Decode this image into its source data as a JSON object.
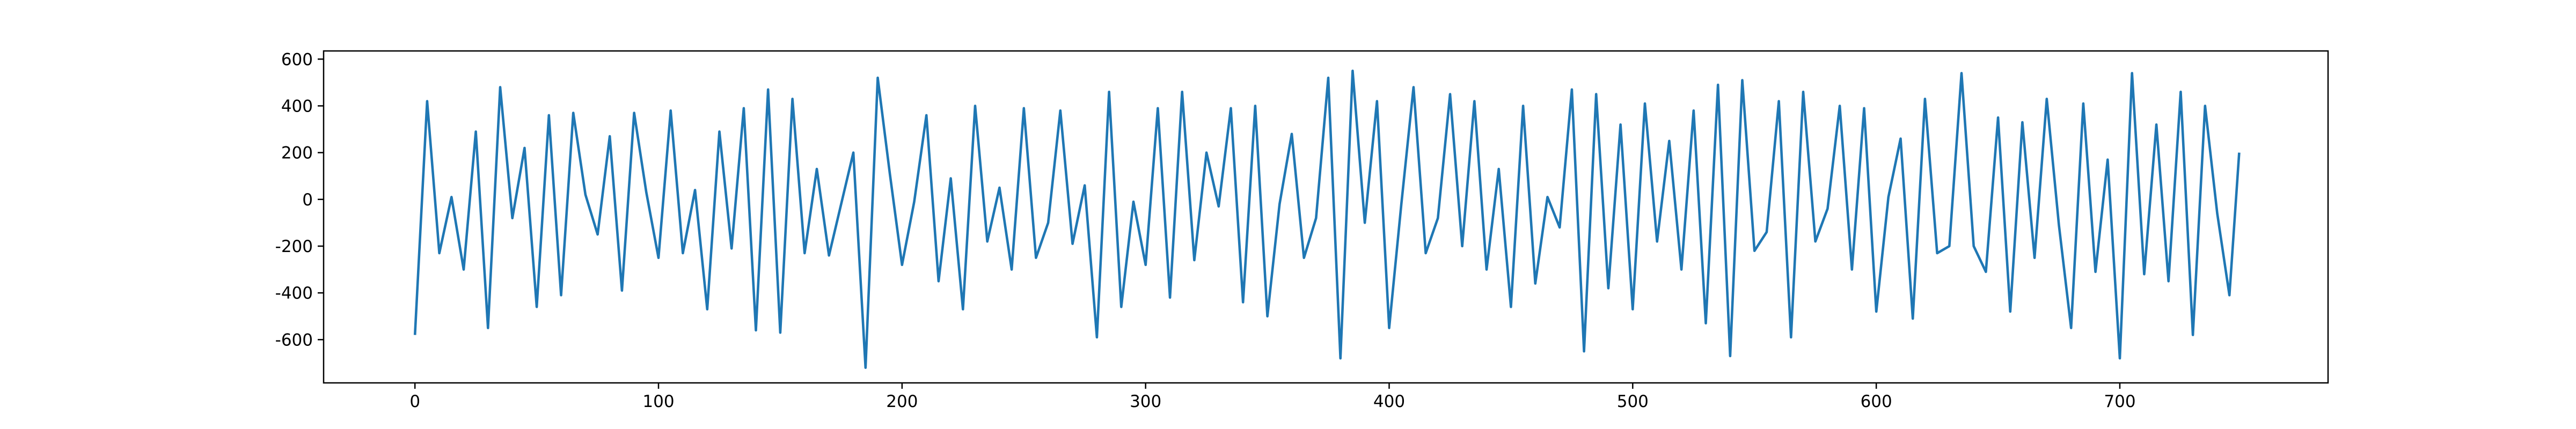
{
  "chart_data": {
    "type": "line",
    "x": [
      0,
      5,
      10,
      15,
      20,
      25,
      30,
      35,
      40,
      45,
      50,
      55,
      60,
      65,
      70,
      75,
      80,
      85,
      90,
      95,
      100,
      105,
      110,
      115,
      120,
      125,
      130,
      135,
      140,
      145,
      150,
      155,
      160,
      165,
      170,
      175,
      180,
      185,
      190,
      195,
      200,
      205,
      210,
      215,
      220,
      225,
      230,
      235,
      240,
      245,
      250,
      255,
      260,
      265,
      270,
      275,
      280,
      285,
      290,
      295,
      300,
      305,
      310,
      315,
      320,
      325,
      330,
      335,
      340,
      345,
      350,
      355,
      360,
      365,
      370,
      375,
      380,
      385,
      390,
      395,
      400,
      405,
      410,
      415,
      420,
      425,
      430,
      435,
      440,
      445,
      450,
      455,
      460,
      465,
      470,
      475,
      480,
      485,
      490,
      495,
      500,
      505,
      510,
      515,
      520,
      525,
      530,
      535,
      540,
      545,
      550,
      555,
      560,
      565,
      570,
      575,
      580,
      585,
      590,
      595,
      600,
      605,
      610,
      615,
      620,
      625,
      630,
      635,
      640,
      645,
      650,
      655,
      660,
      665,
      670,
      675,
      680,
      685,
      690,
      695,
      700,
      705,
      710,
      715,
      720,
      725,
      730,
      735,
      740,
      745,
      749
    ],
    "series": [
      {
        "color": "#1f77b4",
        "values": [
          -580,
          420,
          -230,
          10,
          -300,
          290,
          -550,
          480,
          -80,
          220,
          -460,
          360,
          -410,
          370,
          20,
          -150,
          270,
          -390,
          370,
          30,
          -250,
          380,
          -230,
          40,
          -470,
          290,
          -210,
          390,
          -560,
          470,
          -570,
          430,
          -230,
          130,
          -240,
          -20,
          200,
          -720,
          520,
          110,
          -280,
          -10,
          360,
          -350,
          90,
          -470,
          400,
          -180,
          50,
          -300,
          390,
          -250,
          -100,
          380,
          -190,
          60,
          -590,
          460,
          -460,
          -10,
          -280,
          390,
          -420,
          460,
          -260,
          200,
          -30,
          390,
          -440,
          400,
          -500,
          -20,
          280,
          -250,
          -80,
          520,
          -680,
          550,
          -100,
          420,
          -550,
          -20,
          480,
          -230,
          -80,
          450,
          -200,
          420,
          -300,
          130,
          -460,
          400,
          -360,
          10,
          -120,
          470,
          -650,
          450,
          -380,
          320,
          -470,
          410,
          -180,
          250,
          -300,
          380,
          -530,
          490,
          -670,
          510,
          -220,
          -140,
          420,
          -590,
          460,
          -180,
          -40,
          400,
          -300,
          390,
          -480,
          10,
          260,
          -510,
          430,
          -230,
          -200,
          540,
          -200,
          -310,
          350,
          -480,
          330,
          -250,
          430,
          -110,
          -550,
          410,
          -310,
          170,
          -680,
          540,
          -320,
          320,
          -350,
          460,
          -580,
          400,
          -60,
          -410,
          200
        ]
      }
    ],
    "xlim": [
      -37.5,
      785.5
    ],
    "ylim": [
      -785,
      635
    ],
    "xticks": [
      0,
      100,
      200,
      300,
      400,
      500,
      600,
      700
    ],
    "yticks": [
      -600,
      -400,
      -200,
      0,
      200,
      400,
      600
    ]
  }
}
